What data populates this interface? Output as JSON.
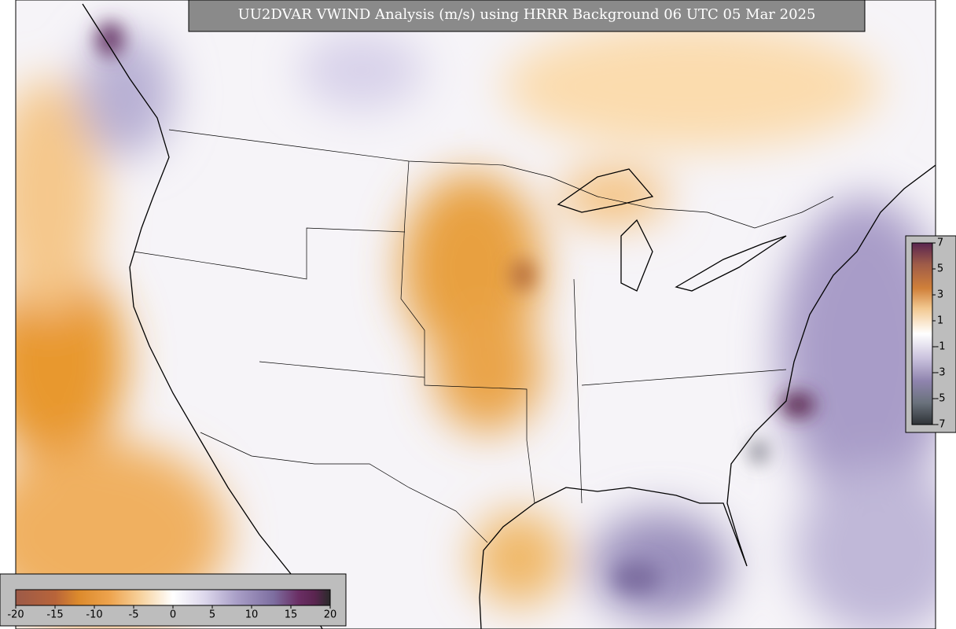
{
  "header": {
    "title": "UU2DVAR VWIND Analysis (m/s) using HRRR Background 06 UTC 05 Mar 2025"
  },
  "colorbar_bottom": {
    "ticks": [
      "-20",
      "-15",
      "-10",
      "-5",
      "0",
      "5",
      "10",
      "15",
      "20"
    ]
  },
  "colorbar_right": {
    "ticks": [
      "7",
      "5",
      "3",
      "1",
      "-1",
      "-3",
      "-5",
      "-7"
    ]
  }
}
